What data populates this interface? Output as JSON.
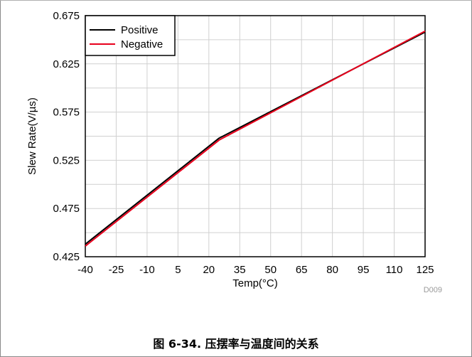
{
  "chart_data": {
    "type": "line",
    "xlabel": "Temp(°C)",
    "ylabel": "Slew Rate(V/µs)",
    "xlim": [
      -40,
      125
    ],
    "ylim": [
      0.425,
      0.675
    ],
    "xticks": [
      "-40",
      "-25",
      "-10",
      "5",
      "20",
      "35",
      "50",
      "65",
      "80",
      "95",
      "110",
      "125"
    ],
    "yticks": [
      "0.675",
      "0.625",
      "0.575",
      "0.525",
      "0.475",
      "0.425"
    ],
    "grid": true,
    "legend_position": "top-left",
    "series": [
      {
        "name": "Positive",
        "color": "#000000",
        "x": [
          -40,
          25,
          125
        ],
        "y": [
          0.438,
          0.548,
          0.658
        ]
      },
      {
        "name": "Negative",
        "color": "#e8001c",
        "x": [
          -40,
          25,
          125
        ],
        "y": [
          0.436,
          0.546,
          0.659
        ]
      }
    ],
    "doc_id": "D009"
  },
  "caption": "图 6-34. 压摆率与温度间的关系"
}
